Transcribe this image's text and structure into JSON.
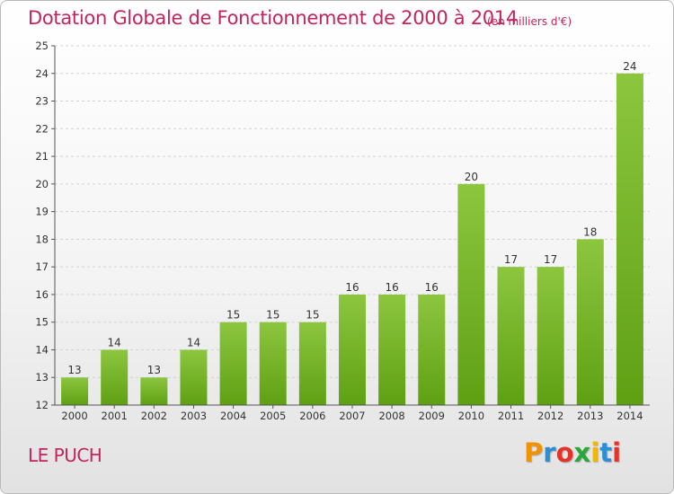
{
  "chart_data": {
    "type": "bar",
    "title": "Dotation Globale de Fonctionnement de 2000 à 2014",
    "unit": "(en milliers d'€)",
    "categories": [
      "2000",
      "2001",
      "2002",
      "2003",
      "2004",
      "2005",
      "2006",
      "2007",
      "2008",
      "2009",
      "2010",
      "2011",
      "2012",
      "2013",
      "2014"
    ],
    "values": [
      13,
      14,
      13,
      14,
      15,
      15,
      15,
      16,
      16,
      16,
      20,
      17,
      17,
      18,
      24
    ],
    "ylim": [
      12,
      25
    ],
    "yticks": [
      12,
      13,
      14,
      15,
      16,
      17,
      18,
      19,
      20,
      21,
      22,
      23,
      24,
      25
    ],
    "xlabel": "",
    "ylabel": "",
    "bar_color": "#8cc63f",
    "bar_color_dark": "#5fa013"
  },
  "footer": {
    "place": "LE PUCH",
    "logo_letters": [
      {
        "ch": "P",
        "color": "#f39200"
      },
      {
        "ch": "r",
        "color": "#2a8fd4"
      },
      {
        "ch": "o",
        "color": "#e5332a"
      },
      {
        "ch": "x",
        "color": "#29a839"
      },
      {
        "ch": "i",
        "color": "#f3b700"
      },
      {
        "ch": "t",
        "color": "#2a8fd4"
      },
      {
        "ch": "i",
        "color": "#e5332a"
      }
    ]
  }
}
